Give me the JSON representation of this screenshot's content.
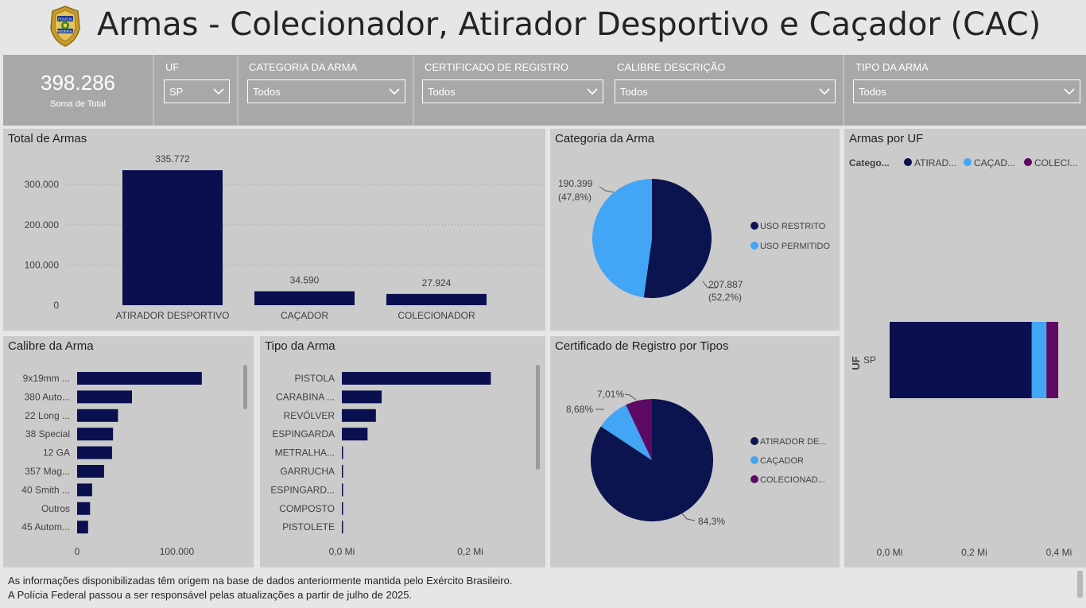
{
  "header": {
    "title": "Armas - Colecionador, Atirador Desportivo e Caçador (CAC)",
    "logo_icon": "policia-federal-badge-icon",
    "logo_text_top": "POLÍCIA",
    "logo_text_bottom": "FEDERAL"
  },
  "kpi": {
    "value": "398.286",
    "label": "Soma de Total"
  },
  "filters": {
    "uf": {
      "title": "UF",
      "value": "SP"
    },
    "categoria": {
      "title": "CATEGORIA DA ARMA",
      "value": "Todos"
    },
    "certificado": {
      "title": "CERTIFICADO DE REGISTRO",
      "value": "Todos"
    },
    "calibre": {
      "title": "CALIBRE DESCRIÇÃO",
      "value": "Todos"
    },
    "tipo": {
      "title": "TIPO DA ARMA",
      "value": "Todos"
    }
  },
  "colors": {
    "navy": "#0c1450",
    "navy_bar": "#0a0f4f",
    "light_blue": "#42a5f5",
    "purple": "#5c0a64",
    "filter_bg": "#a8a8a8",
    "panel_bg": "#cbcbcb"
  },
  "total_armas": {
    "title": "Total de Armas",
    "chart_data": {
      "type": "bar",
      "categories": [
        "ATIRADOR DESPORTIVO",
        "CAÇADOR",
        "COLECIONADOR"
      ],
      "values": [
        335772,
        34590,
        27924
      ],
      "data_labels": [
        "335.772",
        "34.590",
        "27.924"
      ],
      "yticks": [
        "0",
        "100.000",
        "200.000",
        "300.000"
      ],
      "ytick_values": [
        0,
        100000,
        200000,
        300000
      ],
      "ylim": [
        0,
        340000
      ]
    }
  },
  "categoria_arma": {
    "title": "Categoria da Arma",
    "chart_data": {
      "type": "pie",
      "labels": [
        "USO RESTRITO",
        "USO PERMITIDO"
      ],
      "values": [
        207887,
        190399
      ],
      "data_labels": [
        [
          "207.887",
          "(52,2%)"
        ],
        [
          "190.399",
          "(47,8%)"
        ]
      ]
    }
  },
  "armas_por_uf": {
    "title": "Armas por UF",
    "legend_title": "Catego...",
    "legend": [
      "ATIRAD...",
      "CAÇAD...",
      "COLECI..."
    ],
    "y_axis_title": "UF",
    "chart_data": {
      "type": "bar",
      "orientation": "horizontal-stacked",
      "categories": [
        "SP"
      ],
      "series": [
        {
          "name": "ATIRAD...",
          "values": [
            335772
          ]
        },
        {
          "name": "CAÇAD...",
          "values": [
            34590
          ]
        },
        {
          "name": "COLECI...",
          "values": [
            27924
          ]
        }
      ],
      "xticks": [
        "0,0 Mi",
        "0,2 Mi",
        "0,4 Mi"
      ],
      "xtick_values": [
        0,
        200000,
        400000
      ],
      "xlim": [
        0,
        400000
      ]
    }
  },
  "calibre_arma": {
    "title": "Calibre da Arma",
    "chart_data": {
      "type": "bar",
      "orientation": "horizontal",
      "categories": [
        "9x19mm ...",
        "380 Auto...",
        "22 Long ...",
        "38 Special",
        "12 GA",
        "357 Mag...",
        "40 Smith ...",
        "Outros",
        "45 Autom..."
      ],
      "values": [
        125000,
        55000,
        41000,
        36000,
        35000,
        27000,
        15000,
        13000,
        11000
      ],
      "xticks": [
        "0",
        "100.000"
      ],
      "xtick_values": [
        0,
        100000
      ],
      "xlim": [
        0,
        165000
      ]
    }
  },
  "tipo_arma": {
    "title": "Tipo da Arma",
    "chart_data": {
      "type": "bar",
      "orientation": "horizontal",
      "categories": [
        "PISTOLA",
        "CARABINA ...",
        "REVÓLVER",
        "ESPINGARDA",
        "METRALHA...",
        "GARRUCHA",
        "ESPINGARD...",
        "COMPOSTO",
        "PISTOLETE"
      ],
      "values": [
        232000,
        62000,
        53000,
        40000,
        1500,
        1200,
        1000,
        800,
        600
      ],
      "xticks": [
        "0,0 Mi",
        "0,2 Mi"
      ],
      "xtick_values": [
        0,
        200000
      ],
      "xlim": [
        0,
        260000
      ]
    }
  },
  "certificado_tipos": {
    "title": "Certificado de Registro por Tipos",
    "chart_data": {
      "type": "pie",
      "labels": [
        "ATIRADOR DE...",
        "CAÇADOR",
        "COLECIONAD..."
      ],
      "values": [
        84.3,
        8.68,
        7.01
      ],
      "data_labels": [
        "84,3%",
        "8,68%",
        "7,01%"
      ]
    }
  },
  "footer": {
    "line1": "As informações disponibilizadas têm origem na base de dados anteriormente mantida pelo Exército Brasileiro.",
    "line2": "A Polícia Federal passou a ser responsável pelas atualizações a partir de julho de 2025."
  }
}
